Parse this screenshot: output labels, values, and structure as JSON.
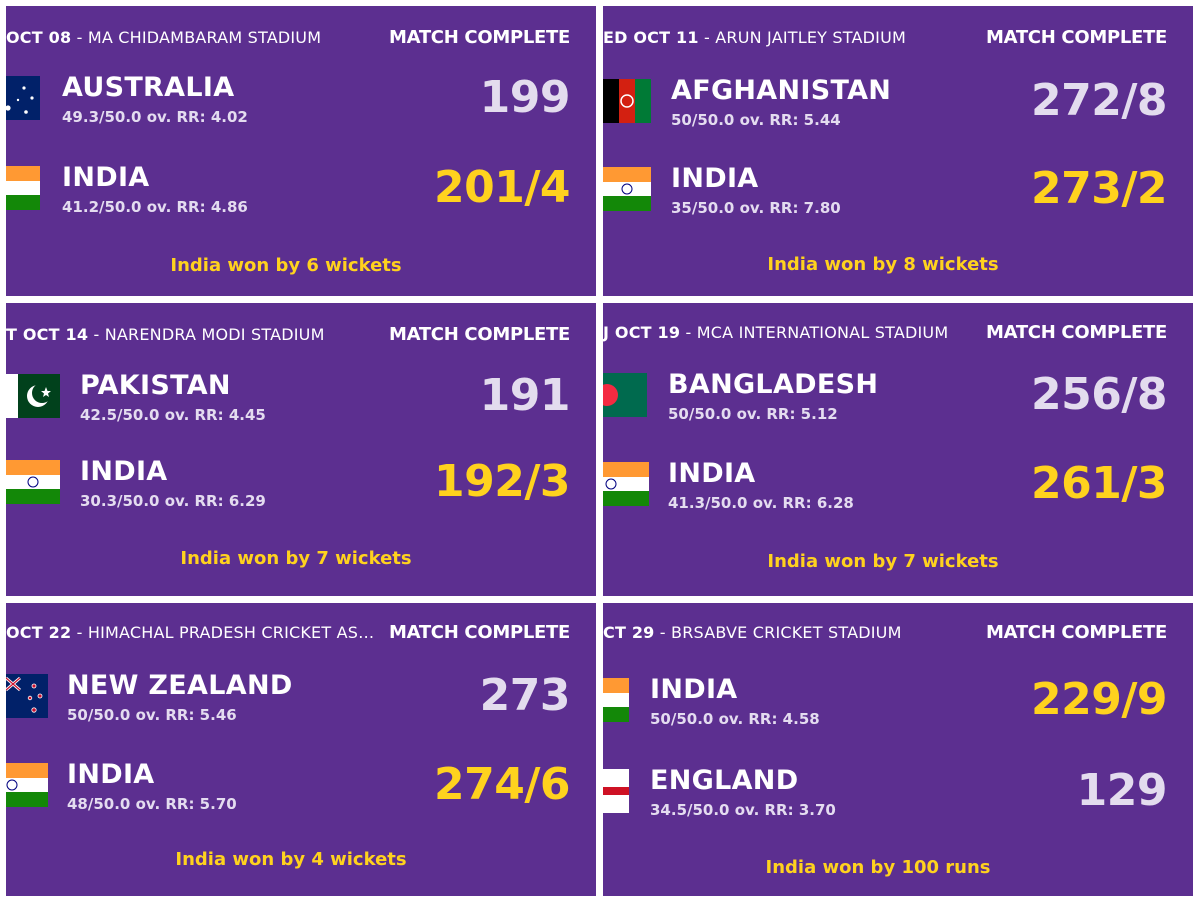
{
  "matches": [
    {
      "date": "OCT 08",
      "venue": "MA CHIDAMBARAM STADIUM",
      "status": "MATCH COMPLETE",
      "team1": {
        "name": "AUSTRALIA",
        "info": "49.3/50.0 ov. RR: 4.02",
        "score": "199",
        "flag": "australia-flag-icon"
      },
      "team2": {
        "name": "INDIA",
        "info": "41.2/50.0 ov. RR: 4.86",
        "score": "201/4",
        "flag": "india-flag-icon"
      },
      "winner": 2,
      "result": "India won by 6 wickets"
    },
    {
      "date": "ED OCT 11",
      "venue": "ARUN JAITLEY STADIUM",
      "status": "MATCH COMPLETE",
      "team1": {
        "name": "AFGHANISTAN",
        "info": "50/50.0 ov. RR: 5.44",
        "score": "272/8",
        "flag": "afghanistan-flag-icon"
      },
      "team2": {
        "name": "INDIA",
        "info": "35/50.0 ov. RR: 7.80",
        "score": "273/2",
        "flag": "india-flag-icon"
      },
      "winner": 2,
      "result": "India won by 8 wickets"
    },
    {
      "date": "T OCT 14",
      "venue": "NARENDRA MODI STADIUM",
      "status": "MATCH COMPLETE",
      "team1": {
        "name": "PAKISTAN",
        "info": "42.5/50.0 ov. RR: 4.45",
        "score": "191",
        "flag": "pakistan-flag-icon"
      },
      "team2": {
        "name": "INDIA",
        "info": "30.3/50.0 ov. RR: 6.29",
        "score": "192/3",
        "flag": "india-flag-icon"
      },
      "winner": 2,
      "result": "India won by 7 wickets"
    },
    {
      "date": "J OCT 19",
      "venue": "MCA INTERNATIONAL STADIUM",
      "status": "MATCH COMPLETE",
      "team1": {
        "name": "BANGLADESH",
        "info": "50/50.0 ov. RR: 5.12",
        "score": "256/8",
        "flag": "bangladesh-flag-icon"
      },
      "team2": {
        "name": "INDIA",
        "info": "41.3/50.0 ov. RR: 6.28",
        "score": "261/3",
        "flag": "india-flag-icon"
      },
      "winner": 2,
      "result": "India won by 7 wickets"
    },
    {
      "date": "OCT 22",
      "venue": "HIMACHAL PRADESH CRICKET ASS...",
      "status": "MATCH COMPLETE",
      "team1": {
        "name": "NEW ZEALAND",
        "info": "50/50.0 ov. RR: 5.46",
        "score": "273",
        "flag": "new-zealand-flag-icon"
      },
      "team2": {
        "name": "INDIA",
        "info": "48/50.0 ov. RR: 5.70",
        "score": "274/6",
        "flag": "india-flag-icon"
      },
      "winner": 2,
      "result": "India won by 4 wickets"
    },
    {
      "date": "CT 29",
      "venue": "BRSABVE CRICKET STADIUM",
      "status": "MATCH COMPLETE",
      "team1": {
        "name": "INDIA",
        "info": "50/50.0 ov. RR: 4.58",
        "score": "229/9",
        "flag": "india-flag-icon"
      },
      "team2": {
        "name": "ENGLAND",
        "info": "34.5/50.0 ov. RR: 3.70",
        "score": "129",
        "flag": "england-flag-icon"
      },
      "winner": 1,
      "result": "India won by 100 runs"
    }
  ]
}
